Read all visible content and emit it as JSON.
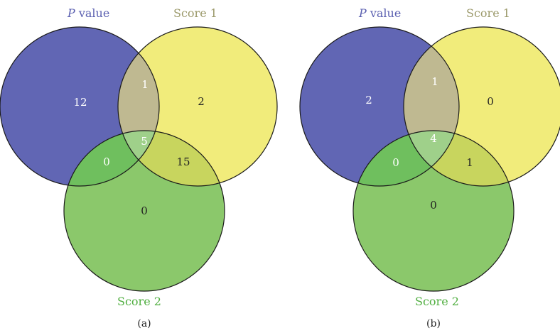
{
  "colors": {
    "pvalue": "#6166b4",
    "score1": "#f1ec7b",
    "score2": "#8bc86b",
    "pv_s1": "#bfb991",
    "pv_s2": "#6fbf5e",
    "s1_s2": "#c8d55e",
    "all": "#9fd08a",
    "pvalue_label": "#5a5fb0",
    "score1_label": "#9c9a6b",
    "score2_label": "#4fae3f",
    "outline": "#1a1a1a"
  },
  "diagrams": [
    {
      "caption": "(a)",
      "set_labels": {
        "pvalue_italic": "P",
        "pvalue_rest": " value",
        "score1": "Score 1",
        "score2": "Score 2"
      },
      "counts": {
        "pvalue_only": "12",
        "score1_only": "2",
        "score2_only": "0",
        "pv_s1": "1",
        "pv_s2": "0",
        "s1_s2": "15",
        "all": "5"
      }
    },
    {
      "caption": "(b)",
      "set_labels": {
        "pvalue_italic": "P",
        "pvalue_rest": " value",
        "score1": "Score 1",
        "score2": "Score 2"
      },
      "counts": {
        "pvalue_only": "2",
        "score1_only": "0",
        "score2_only": "0",
        "pv_s1": "1",
        "pv_s2": "0",
        "s1_s2": "1",
        "all": "4"
      }
    }
  ]
}
